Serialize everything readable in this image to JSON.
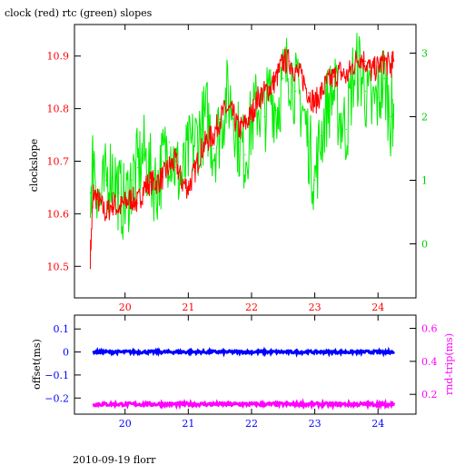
{
  "title": "clock (red) rtc (green) slopes",
  "footer": "2010-09-19 florr",
  "colors": {
    "clock": "#ff0000",
    "rtc": "#00ee00",
    "offset": "#0000ff",
    "rtt": "#ff00ff",
    "axis": "#000000"
  },
  "chart_data": [
    {
      "type": "line",
      "title": "clock (red) rtc (green) slopes",
      "xlabel": "",
      "ylabel": "clockslope",
      "y2label": "",
      "xlim": [
        19.2,
        24.6
      ],
      "ylim": [
        10.44,
        10.96
      ],
      "y2lim": [
        -0.85,
        3.45
      ],
      "x_ticks": [
        20,
        21,
        22,
        23,
        24
      ],
      "y_ticks": [
        10.5,
        10.6,
        10.7,
        10.8,
        10.9
      ],
      "y2_ticks": [
        0,
        1,
        2,
        3
      ],
      "series": [
        {
          "name": "clock",
          "axis": "left",
          "x": [
            19.45,
            19.5,
            19.6,
            19.7,
            19.8,
            19.9,
            20.0,
            20.1,
            20.2,
            20.3,
            20.4,
            20.5,
            20.6,
            20.7,
            20.8,
            20.9,
            21.0,
            21.1,
            21.2,
            21.3,
            21.4,
            21.5,
            21.6,
            21.7,
            21.8,
            21.9,
            22.0,
            22.1,
            22.2,
            22.3,
            22.4,
            22.5,
            22.6,
            22.7,
            22.8,
            22.9,
            23.0,
            23.1,
            23.2,
            23.3,
            23.4,
            23.5,
            23.6,
            23.7,
            23.8,
            23.9,
            24.0,
            24.1,
            24.2,
            24.25
          ],
          "y": [
            10.52,
            10.64,
            10.62,
            10.6,
            10.62,
            10.61,
            10.62,
            10.63,
            10.62,
            10.65,
            10.66,
            10.66,
            10.67,
            10.69,
            10.7,
            10.66,
            10.65,
            10.68,
            10.72,
            10.74,
            10.75,
            10.78,
            10.8,
            10.79,
            10.76,
            10.77,
            10.79,
            10.82,
            10.83,
            10.84,
            10.86,
            10.89,
            10.89,
            10.87,
            10.86,
            10.83,
            10.81,
            10.83,
            10.85,
            10.86,
            10.87,
            10.86,
            10.88,
            10.9,
            10.89,
            10.87,
            10.88,
            10.89,
            10.88,
            10.89
          ]
        },
        {
          "name": "rtc",
          "axis": "right",
          "x": [
            19.45,
            19.5,
            19.6,
            19.7,
            19.8,
            19.9,
            20.0,
            20.1,
            20.2,
            20.3,
            20.4,
            20.5,
            20.6,
            20.7,
            20.8,
            20.9,
            21.0,
            21.1,
            21.2,
            21.3,
            21.4,
            21.5,
            21.6,
            21.7,
            21.8,
            21.9,
            22.0,
            22.1,
            22.2,
            22.3,
            22.4,
            22.5,
            22.6,
            22.7,
            22.8,
            22.9,
            23.0,
            23.1,
            23.2,
            23.3,
            23.4,
            23.5,
            23.6,
            23.7,
            23.8,
            23.9,
            24.0,
            24.1,
            24.2,
            24.25
          ],
          "y": [
            0.8,
            1.4,
            0.6,
            1.0,
            1.2,
            0.8,
            0.6,
            1.0,
            1.2,
            1.4,
            1.1,
            0.9,
            1.3,
            1.6,
            1.2,
            1.0,
            1.4,
            1.6,
            1.8,
            2.0,
            1.5,
            1.8,
            2.3,
            2.2,
            1.6,
            1.4,
            1.9,
            2.2,
            2.0,
            2.4,
            2.1,
            2.6,
            2.8,
            2.4,
            2.2,
            1.6,
            1.0,
            1.7,
            2.2,
            2.4,
            2.0,
            1.8,
            2.6,
            2.8,
            2.4,
            2.1,
            2.3,
            2.6,
            2.0,
            2.2
          ]
        }
      ]
    },
    {
      "type": "scatter",
      "xlabel": "",
      "ylabel": "offset(ms)",
      "y2label": "rnd-trip(ms)",
      "xlim": [
        19.2,
        24.6
      ],
      "ylim": [
        -0.27,
        0.16
      ],
      "y2lim": [
        0.08,
        0.68
      ],
      "x_ticks": [
        20,
        21,
        22,
        23,
        24
      ],
      "y_ticks": [
        0.1,
        0,
        -0.1,
        -0.2
      ],
      "y_tick_labels": [
        "0.1",
        "0",
        "−0.1",
        "−0.2"
      ],
      "y2_ticks": [
        0.2,
        0.4,
        0.6
      ],
      "series": [
        {
          "name": "offset",
          "axis": "left",
          "x": [
            19.5,
            20.0,
            20.5,
            21.0,
            21.5,
            22.0,
            22.5,
            23.0,
            23.5,
            24.0,
            24.25
          ],
          "y": [
            0.0,
            0.0,
            0.0,
            0.0,
            0.0,
            0.0,
            0.0,
            0.0,
            0.0,
            0.0,
            0.0
          ]
        },
        {
          "name": "rtt",
          "axis": "right",
          "x": [
            19.5,
            20.0,
            20.5,
            21.0,
            21.5,
            22.0,
            22.5,
            23.0,
            23.5,
            24.0,
            24.25
          ],
          "y": [
            0.14,
            0.14,
            0.14,
            0.14,
            0.14,
            0.14,
            0.14,
            0.14,
            0.14,
            0.14,
            0.14
          ]
        }
      ]
    }
  ]
}
